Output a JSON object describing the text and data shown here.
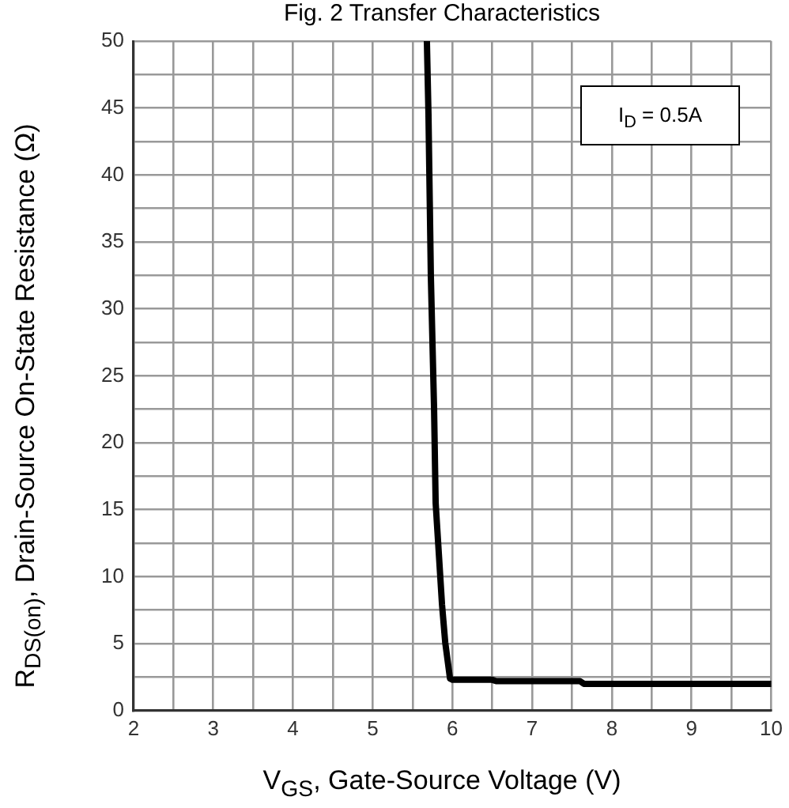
{
  "chart_data": {
    "type": "line",
    "title": "Fig. 2 Transfer Characteristics",
    "xlabel": "V$_{GS}$, Gate-Source Voltage (V)",
    "ylabel": "R$_{DS(on)}$, Drain-Source On-State Resistance (Ω)",
    "annotations": [
      "I$_{D}$ = 0.5A"
    ],
    "xlim": [
      2,
      10
    ],
    "ylim": [
      0,
      50
    ],
    "xticks": [
      2,
      {
        "value": 2.5,
        "label": null
      },
      3,
      {
        "value": 3.5,
        "label": null
      },
      4,
      {
        "value": 4.5,
        "label": null
      },
      5,
      {
        "value": 5.5,
        "label": null
      },
      6,
      {
        "value": 6.5,
        "label": null
      },
      7,
      {
        "value": 7.5,
        "label": null
      },
      8,
      {
        "value": 8.5,
        "label": null
      },
      9,
      {
        "value": 9.5,
        "label": null
      },
      10
    ],
    "yticks": [
      0,
      {
        "value": 2.5,
        "label": null
      },
      5,
      {
        "value": 7.5,
        "label": null
      },
      10,
      {
        "value": 12.5,
        "label": null
      },
      15,
      {
        "value": 17.5,
        "label": null
      },
      20,
      {
        "value": 22.5,
        "label": null
      },
      25,
      {
        "value": 27.5,
        "label": null
      },
      30,
      {
        "value": 32.5,
        "label": null
      },
      35,
      {
        "value": 37.5,
        "label": null
      },
      40,
      {
        "value": 42.5,
        "label": null
      },
      45,
      {
        "value": 47.5,
        "label": null
      },
      50
    ],
    "grid": true,
    "legend": false,
    "marker": "none",
    "line_style": "solid",
    "series": [
      {
        "color": "#000000",
        "x": [
          5.68,
          5.7,
          5.73,
          5.77,
          5.79,
          5.87,
          5.91,
          5.97,
          6.0,
          6.5,
          6.55,
          7.6,
          7.65,
          10
        ],
        "values": [
          50,
          44.5,
          32.4,
          22.6,
          15.5,
          7.9,
          5.1,
          2.4,
          2.3,
          2.3,
          2.2,
          2.2,
          2.0,
          2.0
        ]
      }
    ]
  }
}
